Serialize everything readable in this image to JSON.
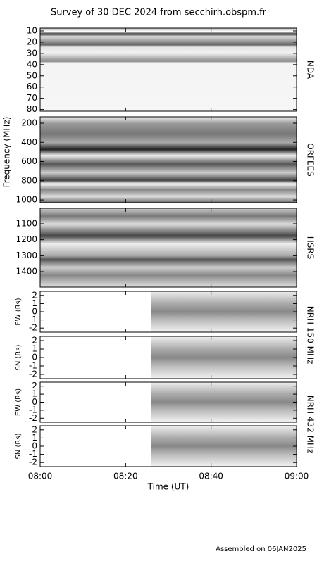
{
  "chart_data": {
    "type": "spectrogram",
    "title": "Survey of 30 DEC 2024 from secchirh.obspm.fr",
    "xlabel": "Time (UT)",
    "ylabel": "Frequency (MHz)",
    "footer": "Assembled on 06JAN2025",
    "xlim": [
      480,
      540
    ],
    "xticks": [
      {
        "value": 480,
        "label": "08:00"
      },
      {
        "value": 500,
        "label": "08:20"
      },
      {
        "value": 520,
        "label": "08:40"
      },
      {
        "value": 540,
        "label": "09:00"
      }
    ],
    "panels": [
      {
        "side_label": "NDA",
        "ylim": [
          7.5,
          81.5
        ],
        "yticks": [
          10,
          20,
          30,
          40,
          50,
          60,
          70,
          80
        ],
        "inverted": true,
        "coverage": [
          480,
          540
        ]
      },
      {
        "side_label": "ORFEES",
        "ylim": [
          134,
          1029
        ],
        "yticks": [
          200,
          400,
          600,
          800,
          1000
        ],
        "inverted": true,
        "coverage": [
          480,
          540
        ]
      },
      {
        "side_label": "HSRS",
        "ylim": [
          1003,
          1497
        ],
        "yticks": [
          1100,
          1200,
          1300,
          1400
        ],
        "inverted": true,
        "coverage": [
          480,
          540
        ]
      },
      {
        "axis_label": "EW (Rs)",
        "ylim": [
          -2.5,
          2.5
        ],
        "yticks": [
          -2,
          -1,
          0,
          1,
          2
        ],
        "inverted": false,
        "coverage": [
          506,
          540
        ]
      },
      {
        "axis_label": "SN (Rs)",
        "ylim": [
          -2.5,
          2.5
        ],
        "yticks": [
          -2,
          -1,
          0,
          1,
          2
        ],
        "inverted": false,
        "coverage": [
          506,
          540
        ]
      },
      {
        "axis_label": "EW (Rs)",
        "ylim": [
          -2.5,
          2.5
        ],
        "yticks": [
          -2,
          -1,
          0,
          1,
          2
        ],
        "inverted": false,
        "coverage": [
          506,
          540
        ]
      },
      {
        "axis_label": "SN (Rs)",
        "ylim": [
          -2.5,
          2.5
        ],
        "yticks": [
          -2,
          -1,
          0,
          1,
          2
        ],
        "inverted": false,
        "coverage": [
          506,
          540
        ]
      }
    ],
    "group_labels": [
      {
        "text": "NRH 150 MHz",
        "panels": [
          3,
          4
        ]
      },
      {
        "text": "NRH 432 MHz",
        "panels": [
          5,
          6
        ]
      }
    ]
  }
}
